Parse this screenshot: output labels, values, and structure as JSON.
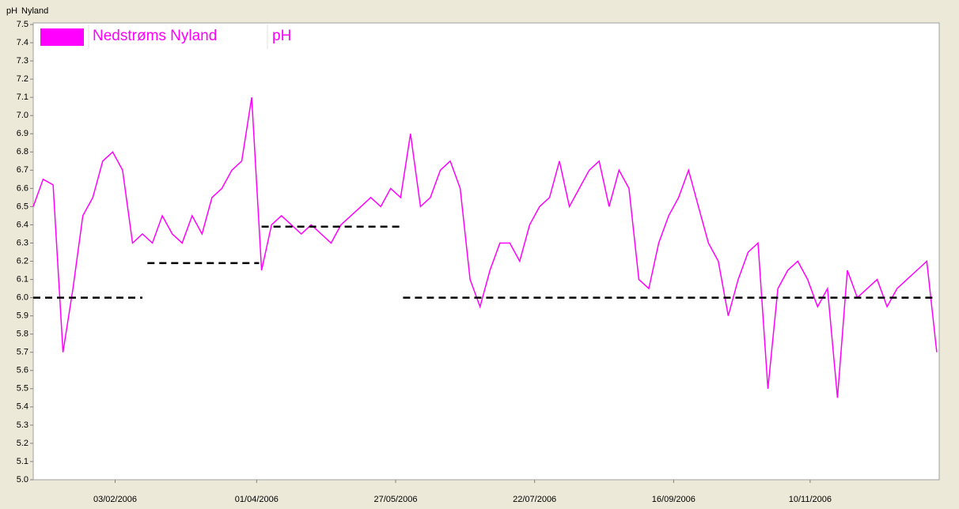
{
  "chart_data": {
    "type": "line",
    "header": [
      "pH",
      "Nyland"
    ],
    "legend_unit": "pH",
    "x": [
      "01/01/2006",
      "05/01/2006",
      "09/01/2006",
      "13/01/2006",
      "17/01/2006",
      "21/01/2006",
      "25/01/2006",
      "29/01/2006",
      "02/02/2006",
      "06/02/2006",
      "10/02/2006",
      "14/02/2006",
      "18/02/2006",
      "22/02/2006",
      "26/02/2006",
      "02/03/2006",
      "06/03/2006",
      "10/03/2006",
      "14/03/2006",
      "18/03/2006",
      "22/03/2006",
      "26/03/2006",
      "30/03/2006",
      "03/04/2006",
      "07/04/2006",
      "11/04/2006",
      "15/04/2006",
      "19/04/2006",
      "23/04/2006",
      "27/04/2006",
      "01/05/2006",
      "05/05/2006",
      "09/05/2006",
      "13/05/2006",
      "17/05/2006",
      "21/05/2006",
      "25/05/2006",
      "29/05/2006",
      "02/06/2006",
      "06/06/2006",
      "10/06/2006",
      "14/06/2006",
      "18/06/2006",
      "22/06/2006",
      "26/06/2006",
      "30/06/2006",
      "04/07/2006",
      "08/07/2006",
      "12/07/2006",
      "16/07/2006",
      "20/07/2006",
      "24/07/2006",
      "28/07/2006",
      "01/08/2006",
      "05/08/2006",
      "09/08/2006",
      "13/08/2006",
      "17/08/2006",
      "21/08/2006",
      "25/08/2006",
      "29/08/2006",
      "02/09/2006",
      "06/09/2006",
      "10/09/2006",
      "14/09/2006",
      "18/09/2006",
      "22/09/2006",
      "26/09/2006",
      "30/09/2006",
      "04/10/2006",
      "08/10/2006",
      "12/10/2006",
      "16/10/2006",
      "20/10/2006",
      "24/10/2006",
      "28/10/2006",
      "01/11/2006",
      "05/11/2006",
      "09/11/2006",
      "13/11/2006",
      "17/11/2006",
      "21/11/2006",
      "25/11/2006",
      "29/11/2006",
      "03/12/2006",
      "07/12/2006",
      "11/12/2006",
      "15/12/2006",
      "19/12/2006",
      "23/12/2006",
      "27/12/2006",
      "31/12/2006"
    ],
    "series": [
      {
        "name": "Nedstrøms Nyland",
        "color": "#ff00ff",
        "values": [
          6.5,
          6.65,
          6.62,
          5.7,
          6.05,
          6.45,
          6.55,
          6.75,
          6.8,
          6.7,
          6.3,
          6.35,
          6.3,
          6.45,
          6.35,
          6.3,
          6.45,
          6.35,
          6.55,
          6.6,
          6.7,
          6.75,
          7.1,
          6.15,
          6.4,
          6.45,
          6.4,
          6.35,
          6.4,
          6.35,
          6.3,
          6.4,
          6.45,
          6.5,
          6.55,
          6.5,
          6.6,
          6.55,
          6.9,
          6.5,
          6.55,
          6.7,
          6.75,
          6.6,
          6.1,
          5.95,
          6.15,
          6.3,
          6.3,
          6.2,
          6.4,
          6.5,
          6.55,
          6.75,
          6.5,
          6.6,
          6.7,
          6.75,
          6.5,
          6.7,
          6.6,
          6.1,
          6.05,
          6.3,
          6.45,
          6.55,
          6.7,
          6.5,
          6.3,
          6.2,
          5.9,
          6.1,
          6.25,
          6.3,
          5.5,
          6.05,
          6.15,
          6.2,
          6.1,
          5.95,
          6.05,
          5.45,
          6.15,
          6.0,
          6.05,
          6.1,
          5.95,
          6.05,
          6.1,
          6.15,
          6.2,
          5.7
        ]
      }
    ],
    "reference_lines": [
      {
        "value": 6.0,
        "start": "01/01/2006",
        "end": "14/02/2006"
      },
      {
        "value": 6.19,
        "start": "16/02/2006",
        "end": "02/04/2006"
      },
      {
        "value": 6.39,
        "start": "03/04/2006",
        "end": "29/05/2006"
      },
      {
        "value": 6.0,
        "start": "30/05/2006",
        "end": "31/12/2006"
      }
    ],
    "reference_color": "#000000",
    "xlim": [
      "01/01/2006",
      "01/01/2007"
    ],
    "xticks": [
      "03/02/2006",
      "01/04/2006",
      "27/05/2006",
      "22/07/2006",
      "16/09/2006",
      "10/11/2006"
    ],
    "ylim": [
      5.0,
      7.5
    ],
    "yticks": [
      {
        "value": 5,
        "label": "5.0"
      },
      5.1,
      5.2,
      5.3,
      5.4,
      5.5,
      5.6,
      5.7,
      5.8,
      5.9,
      {
        "value": 6,
        "label": "6.0"
      },
      6.1,
      6.2,
      6.3,
      6.4,
      6.5,
      6.6,
      6.7,
      6.8,
      6.9,
      {
        "value": 7,
        "label": "7.0"
      },
      7.1,
      7.2,
      7.3,
      7.4,
      7.5
    ]
  }
}
